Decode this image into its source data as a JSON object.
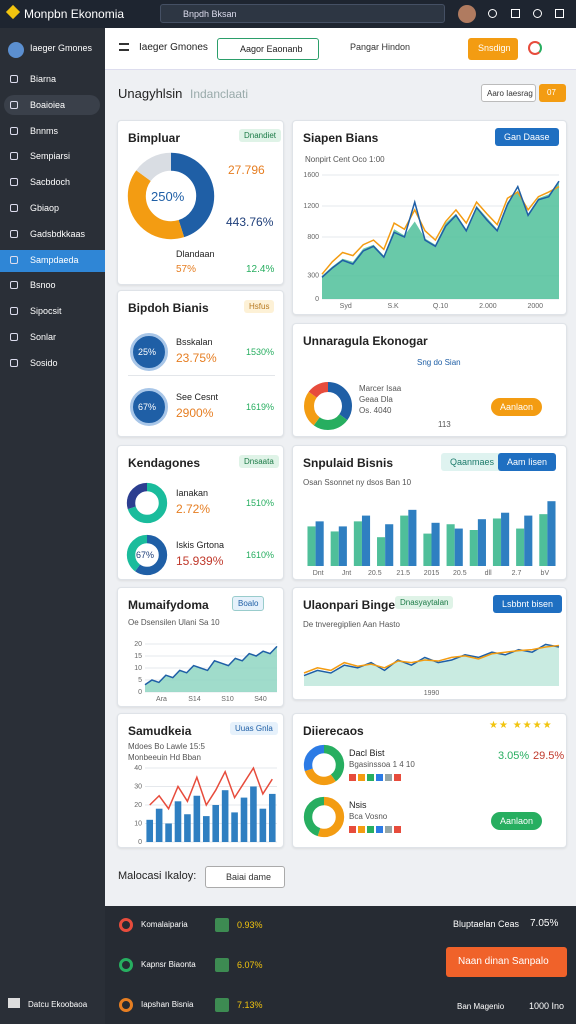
{
  "topbar": {
    "brand": "Monpbn Ekonomia",
    "search": "Bnpdh Bksan"
  },
  "sidebar": {
    "items": [
      "Biarna",
      "Boaioiea",
      "Bnnms",
      "Sempiarsi",
      "Sacbdoch",
      "Gbiaop",
      "Gadsbdkkaas",
      "Sampdaeda",
      "Bsnoo",
      "Sipocsit",
      "Sonlar",
      "Sosido"
    ],
    "footer": "Datcu Ekoobaoa"
  },
  "toolbar": {
    "title": "Iaeger Gmones",
    "tab": "Aagor Eaonanb",
    "link": "Pangar Hindon",
    "action": "Snsdign"
  },
  "heading": {
    "title": "Unagyhlsin",
    "subtitle": "Indanclaati",
    "filter": "Aaro Iaesrag",
    "badge": "07"
  },
  "cards": [
    {
      "title": "Bimpluar",
      "badge": "Dnandiet",
      "center": "250%",
      "v1": "27.796",
      "v2": "443.76%",
      "sub": "Dlandaan",
      "a": "57%",
      "b": "12.4%",
      "chart": {
        "type": "donut",
        "values": [
          45,
          40,
          15
        ],
        "colors": [
          "#1f5fa6",
          "#f39c12",
          "#d9dde3"
        ]
      }
    },
    {
      "title": "Siapen Bians",
      "button": "Gan Daase",
      "legend": "Nonpirt Cent Oco 1:00",
      "chart": {
        "type": "line",
        "ylim": [
          0,
          1600
        ],
        "yticks": [
          0,
          300,
          800,
          1200,
          1600
        ],
        "xticks": [
          "Syd",
          "S.K",
          "Q.10",
          "2.000",
          "2000"
        ],
        "series": [
          {
            "kind": "area",
            "color": "#4fbf9a",
            "values": [
              300,
              420,
              520,
              480,
              650,
              700,
              560,
              900,
              820,
              1000,
              780,
              700,
              980,
              1100,
              900,
              1200,
              1050,
              900,
              1250,
              1400,
              1100,
              1300,
              1350,
              1500
            ]
          },
          {
            "kind": "line",
            "color": "#f39c12",
            "values": [
              320,
              480,
              600,
              560,
              700,
              760,
              640,
              980,
              900,
              1150,
              880,
              760,
              1000,
              1150,
              980,
              1250,
              1100,
              960,
              1300,
              1380,
              1150,
              1320,
              1380,
              1450
            ]
          },
          {
            "kind": "line",
            "color": "#1f5fa6",
            "values": [
              280,
              400,
              500,
              450,
              620,
              680,
              540,
              860,
              800,
              1250,
              760,
              680,
              940,
              1080,
              880,
              1180,
              1020,
              880,
              1220,
              1450,
              1080,
              1280,
              1320,
              1520
            ]
          }
        ]
      }
    },
    {
      "title": "Bipdoh Bianis",
      "badge": "Hsfus",
      "rows": [
        {
          "icon": "25%",
          "name": "Bsskalan",
          "value": "23.75%",
          "pct": "1530%"
        },
        {
          "icon": "67%",
          "name": "See Cesnt",
          "value": "2900%",
          "pct": "1619%"
        }
      ]
    },
    {
      "title": "Unnaragula Ekonogar",
      "sub": "Sng do Sian",
      "l1": "Marcer Isaa",
      "l2": "Geaa Dla",
      "l3": "Os. 4040",
      "l4": "113",
      "button": "Aanlaon",
      "chart": {
        "type": "donut",
        "values": [
          35,
          25,
          25,
          15
        ],
        "colors": [
          "#1f5fa6",
          "#27ae60",
          "#f39c12",
          "#e74c3c"
        ]
      }
    },
    {
      "title": "Kendagones",
      "badge": "Dnsaata",
      "rows": [
        {
          "name": "Ianakan",
          "value": "2.72%",
          "pct": "1510%",
          "chart": {
            "type": "donut",
            "values": [
              70,
              30
            ],
            "colors": [
              "#1abc9c",
              "#2c3e90"
            ]
          }
        },
        {
          "icon": "67%",
          "name": "Iskis Grtona",
          "value": "15.939%",
          "pct": "1610%",
          "chart": {
            "type": "donut",
            "values": [
              60,
              40
            ],
            "colors": [
              "#1f5fa6",
              "#1abc9c"
            ]
          }
        }
      ]
    },
    {
      "title": "Snpulaid Bisnis",
      "button1": "Qaanmaes",
      "button2": "Aam Iisen",
      "note": "Osan Ssonnet ny dsos Ban 10",
      "chart": {
        "type": "bar",
        "ylim": [
          0,
          100
        ],
        "xticks": [
          "Dnt",
          "Jnt",
          "20.5",
          "21.5",
          "2015",
          "20.5",
          "dll",
          "2.7",
          "bV"
        ],
        "series": [
          {
            "kind": "bar",
            "color": "#4fbf9a",
            "values": [
              55,
              48,
              62,
              40,
              70,
              45,
              58,
              50,
              66,
              52,
              72
            ]
          },
          {
            "kind": "bar",
            "color": "#2f7fc1",
            "values": [
              62,
              55,
              70,
              58,
              78,
              60,
              52,
              65,
              74,
              70,
              90
            ]
          }
        ]
      }
    },
    {
      "title": "Mumaifydoma",
      "badge": "Boalo",
      "note": "Oe Dsensilen Ulani Sa 10",
      "chart": {
        "type": "line",
        "ylim": [
          0,
          25
        ],
        "yticks": [
          0,
          5,
          10,
          15,
          20
        ],
        "xticks": [
          "Ara",
          "S14",
          "S10",
          "S40"
        ],
        "series": [
          {
            "kind": "area",
            "color": "#8fd6c2",
            "values": [
              3,
              5,
              4,
              7,
              6,
              9,
              8,
              11,
              10,
              9,
              13,
              12,
              11,
              14,
              13,
              16,
              15,
              17,
              16,
              19
            ]
          },
          {
            "kind": "line",
            "color": "#1f5fa6",
            "values": [
              3,
              5,
              4,
              7,
              6,
              9,
              8,
              11,
              10,
              9,
              13,
              12,
              11,
              14,
              13,
              16,
              15,
              17,
              16,
              19
            ]
          }
        ]
      }
    },
    {
      "title": "Ulaonpari Binge",
      "badge": "Dnasyaytalan",
      "button": "Lsbbnt bisen",
      "note": "De tnveregiplien Aan Hasto",
      "chart": {
        "type": "line",
        "ylim": [
          0,
          100
        ],
        "xticks": [
          "1990"
        ],
        "series": [
          {
            "kind": "area",
            "color": "#bfe8dc",
            "values": [
              20,
              30,
              25,
              40,
              35,
              45,
              30,
              50,
              40,
              55,
              45,
              50,
              60,
              55,
              65,
              60,
              70,
              65,
              80,
              75
            ]
          },
          {
            "kind": "line",
            "color": "#1f5fa6",
            "values": [
              20,
              30,
              25,
              40,
              35,
              45,
              30,
              50,
              40,
              55,
              45,
              50,
              60,
              55,
              65,
              60,
              70,
              65,
              80,
              75
            ]
          },
          {
            "kind": "line",
            "color": "#f39c12",
            "values": [
              25,
              35,
              30,
              45,
              38,
              42,
              35,
              48,
              45,
              50,
              48,
              55,
              58,
              52,
              62,
              65,
              68,
              70,
              75,
              78
            ]
          }
        ]
      }
    },
    {
      "title": "Samudkeia",
      "badge": "Uuas Gnla",
      "legend": "Mdoes Bo Lawle 15:5",
      "sub": "Monbeeuin Hd Bban",
      "chart": {
        "type": "bar",
        "ylim": [
          0,
          40
        ],
        "yticks": [
          0,
          10,
          20,
          30,
          40
        ],
        "series": [
          {
            "kind": "bar",
            "color": "#2f7fc1",
            "values": [
              12,
              18,
              10,
              22,
              15,
              25,
              14,
              20,
              28,
              16,
              24,
              30,
              18,
              26
            ]
          },
          {
            "kind": "line",
            "color": "#e74c3c",
            "values": [
              20,
              25,
              18,
              30,
              22,
              35,
              20,
              28,
              38,
              24,
              32,
              40,
              26,
              34
            ]
          }
        ]
      }
    },
    {
      "title": "Diierecaos",
      "button": "Aanlaon",
      "rows": [
        {
          "name": "Dacl Bist",
          "sub": "Bgasinssoa 1 4 10",
          "value": "3.05%",
          "value2": "29.5%",
          "chart": {
            "type": "donut",
            "values": [
              40,
              30,
              30
            ],
            "colors": [
              "#27ae60",
              "#f39c12",
              "#2c7be5"
            ]
          }
        },
        {
          "name": "Nsis",
          "sub": "Bca Vosno",
          "chart": {
            "type": "donut",
            "values": [
              55,
              45
            ],
            "colors": [
              "#f39c12",
              "#27ae60"
            ]
          }
        }
      ]
    }
  ],
  "footer_bar": {
    "label": "Malocasi Ikaloy:",
    "button": "Baiai dame"
  },
  "bottom": {
    "rows": [
      {
        "name": "Komalaiparia",
        "value": "0.93%"
      },
      {
        "name": "Kapnsr Biaonta",
        "value": "6.07%"
      },
      {
        "name": "Iapshan Bisnia",
        "value": "7.13%"
      }
    ],
    "summary": "Bluptaelan Ceas",
    "summary_value": "7.05%",
    "cta": "Naan dinan Sanpalo",
    "footer": "Ban Magenio",
    "footer_value": "1000 Ino"
  }
}
